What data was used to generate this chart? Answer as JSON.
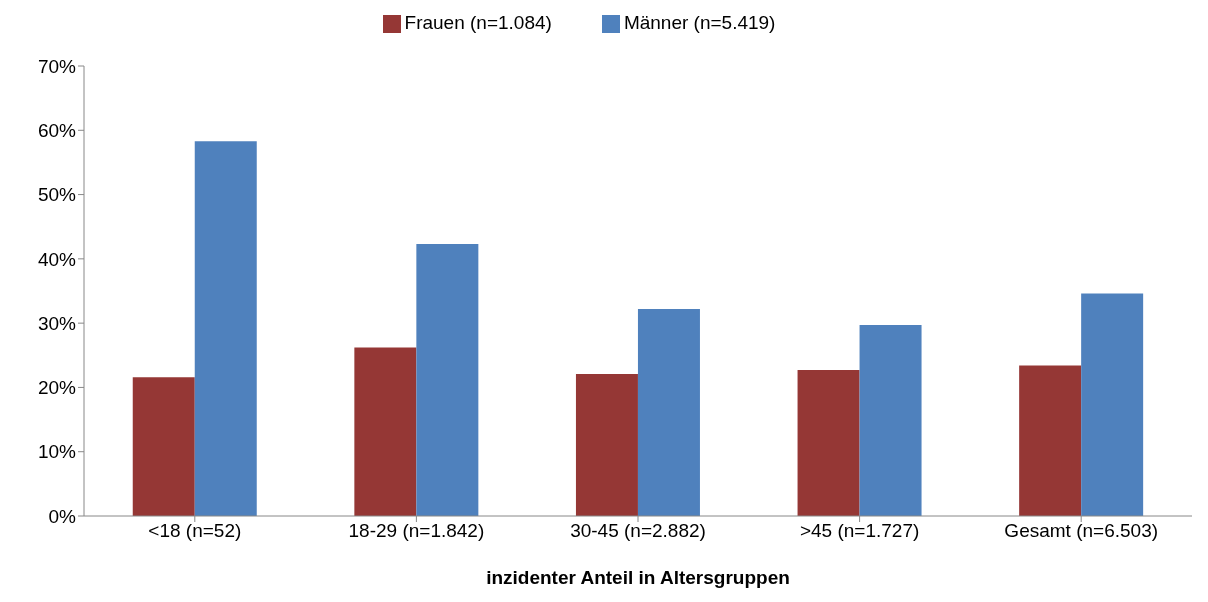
{
  "chart_data": {
    "type": "bar",
    "xlabel": "inzidenter Anteil in Altersgruppen",
    "categories": [
      "<18 (n=52)",
      "18-29 (n=1.842)",
      "30-45 (n=2.882)",
      ">45 (n=1.727)",
      "Gesamt (n=6.503)"
    ],
    "series": [
      {
        "name": "Frauen (n=1.084)",
        "color": "#953735",
        "values": [
          21.6,
          26.2,
          22.1,
          22.7,
          23.4
        ]
      },
      {
        "name": "Männer (n=5.419)",
        "color": "#4f81bd",
        "values": [
          58.3,
          42.3,
          32.2,
          29.7,
          34.6
        ]
      }
    ],
    "ylim": [
      0,
      70
    ],
    "yticks": [
      {
        "value": 0,
        "label": "0%"
      },
      {
        "value": 10,
        "label": "10%"
      },
      {
        "value": 20,
        "label": "20%"
      },
      {
        "value": 30,
        "label": "30%"
      },
      {
        "value": 40,
        "label": "40%"
      },
      {
        "value": 50,
        "label": "50%"
      },
      {
        "value": 60,
        "label": "60%"
      },
      {
        "value": 70,
        "label": "70%"
      }
    ],
    "grid": false,
    "legend": "top"
  }
}
